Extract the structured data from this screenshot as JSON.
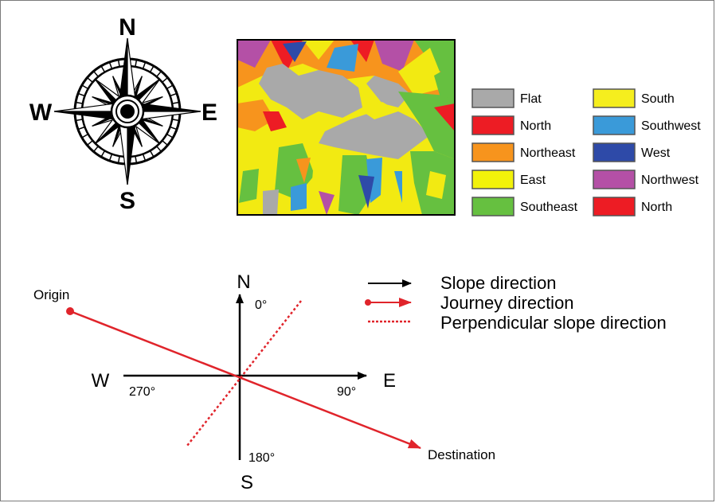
{
  "compass_rose": {
    "north": "N",
    "east": "E",
    "south": "S",
    "west": "W"
  },
  "aspect_legend": {
    "items": [
      {
        "label": "Flat",
        "color": "#a9a9a9"
      },
      {
        "label": "North",
        "color": "#ed1c24"
      },
      {
        "label": "Northeast",
        "color": "#f7941d"
      },
      {
        "label": "East",
        "color": "#f2f20a"
      },
      {
        "label": "Southeast",
        "color": "#66c040"
      },
      {
        "label": "South",
        "color": "#f5ee1e"
      },
      {
        "label": "Southwest",
        "color": "#3a9ad9"
      },
      {
        "label": "West",
        "color": "#2e4aa8"
      },
      {
        "label": "Northwest",
        "color": "#b450a6"
      },
      {
        "label": "North",
        "color": "#ed1c24"
      }
    ]
  },
  "direction_diagram": {
    "axes": {
      "north": "N",
      "east": "E",
      "south": "S",
      "west": "W",
      "deg_north": "0°",
      "deg_east": "90°",
      "deg_south": "180°",
      "deg_west": "270°"
    },
    "origin_label": "Origin",
    "destination_label": "Destination",
    "key": [
      {
        "label": "Slope direction",
        "style": "black-arrow",
        "color": "#000000"
      },
      {
        "label": "Journey direction",
        "style": "red-arrow-dot",
        "color": "#e0242b"
      },
      {
        "label": "Perpendicular slope direction",
        "style": "red-dotted",
        "color": "#e0242b"
      }
    ]
  }
}
